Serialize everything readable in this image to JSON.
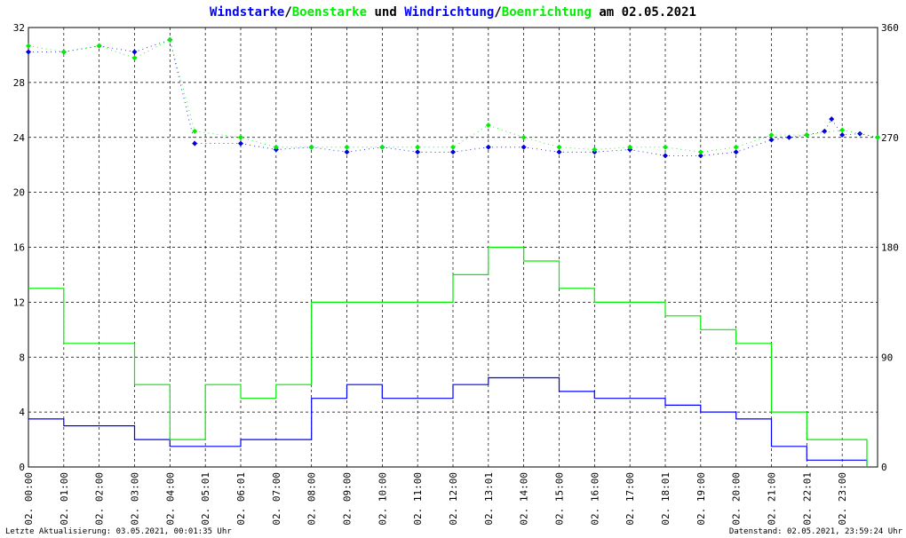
{
  "chart_data": {
    "type": "line",
    "title_parts": [
      {
        "text": "Windstarke",
        "color": "blue"
      },
      {
        "text": "/",
        "color": "black"
      },
      {
        "text": "Boenstarke",
        "color": "green"
      },
      {
        "text": " und ",
        "color": "black"
      },
      {
        "text": "Windrichtung",
        "color": "blue"
      },
      {
        "text": "/",
        "color": "black"
      },
      {
        "text": "Boenrichtung",
        "color": "green"
      },
      {
        "text": " am 02.05.2021",
        "color": "black"
      }
    ],
    "colors": {
      "blue": "#0000ff",
      "green": "#00ee00",
      "black": "#000000",
      "grid": "#000000",
      "marker_blue": "#0000dd"
    },
    "x_range_hours": [
      0,
      24
    ],
    "y_left": {
      "range": [
        0,
        32
      ],
      "ticks": [
        "0",
        "4",
        "8",
        "12",
        "16",
        "20",
        "24",
        "28",
        "32"
      ]
    },
    "y_right": {
      "range": [
        0,
        360
      ],
      "ticks": [
        "0",
        "90",
        "180",
        "270",
        "360"
      ]
    },
    "x_tick_labels": [
      "02. 00:00",
      "02. 01:00",
      "02. 02:00",
      "02. 03:00",
      "02. 04:00",
      "02. 05:01",
      "02. 06:01",
      "02. 07:00",
      "02. 08:00",
      "02. 09:00",
      "02. 10:00",
      "02. 11:00",
      "02. 12:00",
      "02. 13:01",
      "02. 14:00",
      "02. 15:00",
      "02. 16:00",
      "02. 17:00",
      "02. 18:01",
      "02. 19:00",
      "02. 20:00",
      "02. 21:00",
      "02. 22:01",
      "02. 23:00"
    ],
    "grid": true,
    "series": [
      {
        "name": "Windstarke",
        "axis": "left",
        "color": "blue",
        "hours": [
          0,
          1,
          2,
          3,
          4,
          5,
          6,
          7,
          8,
          9,
          10,
          11,
          12,
          13,
          14,
          15,
          16,
          17,
          18,
          19,
          20,
          21,
          22,
          23,
          23.7
        ],
        "values": [
          3.5,
          3,
          3,
          2,
          1.5,
          1.5,
          2,
          2,
          5,
          6,
          5,
          5,
          6,
          6.5,
          6.5,
          5.5,
          5,
          5,
          4.5,
          4,
          3.5,
          1.5,
          0.5,
          0.5,
          0
        ]
      },
      {
        "name": "Boenstarke",
        "axis": "left",
        "color": "green",
        "hours": [
          0,
          1,
          2,
          3,
          4,
          5,
          6,
          7,
          8,
          9,
          10,
          11,
          12,
          13,
          14,
          15,
          16,
          17,
          18,
          19,
          20,
          21,
          22,
          23,
          23.7
        ],
        "values": [
          13,
          9,
          9,
          6,
          2,
          6,
          5,
          6,
          12,
          12,
          12,
          12,
          14,
          16,
          15,
          13,
          12,
          12,
          11,
          10,
          9,
          4,
          2,
          2,
          0
        ]
      },
      {
        "name": "Windrichtung",
        "axis": "right",
        "color": "blue",
        "hours": [
          0,
          1,
          2,
          3,
          4,
          4.7,
          6,
          7,
          8,
          9,
          10,
          11,
          12,
          13,
          14,
          15,
          16,
          17,
          18,
          19,
          20,
          21,
          21.5,
          22,
          22.5,
          22.7,
          23,
          23.5,
          24
        ],
        "values": [
          340,
          340,
          345,
          340,
          350,
          265,
          265,
          260,
          262,
          258,
          262,
          258,
          258,
          262,
          262,
          258,
          258,
          260,
          255,
          255,
          258,
          268,
          270,
          272,
          275,
          285,
          272,
          273,
          270
        ]
      },
      {
        "name": "Boenrichtung",
        "axis": "right",
        "color": "green",
        "hours": [
          0,
          1,
          2,
          3,
          4,
          4.7,
          6,
          7,
          8,
          9,
          10,
          11,
          12,
          13,
          14,
          15,
          16,
          17,
          18,
          19,
          20,
          21,
          22,
          23,
          24
        ],
        "values": [
          345,
          340,
          345,
          335,
          350,
          275,
          270,
          262,
          262,
          262,
          262,
          262,
          262,
          280,
          270,
          262,
          260,
          262,
          262,
          258,
          262,
          272,
          272,
          276,
          270
        ]
      }
    ]
  },
  "footer": {
    "left": "Letzte Aktualisierung: 03.05.2021, 00:01:35 Uhr",
    "right": "Datenstand: 02.05.2021, 23:59:24 Uhr"
  }
}
